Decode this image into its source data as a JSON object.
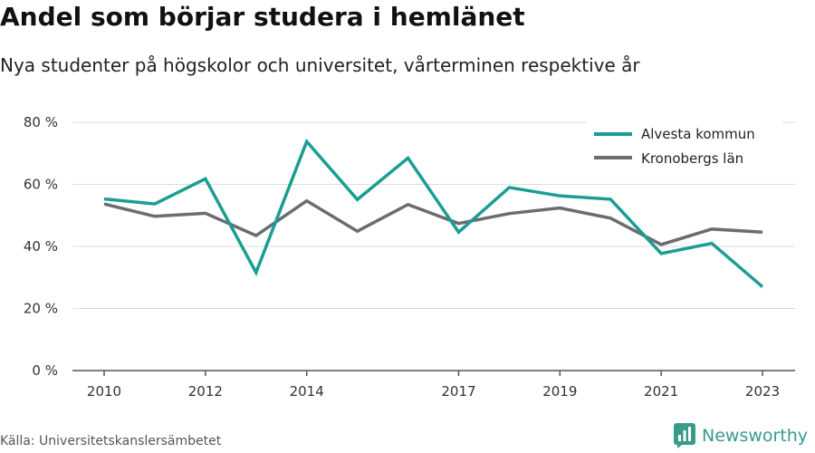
{
  "title": "Andel som börjar studera i hemlänet",
  "subtitle": "Nya studenter på högskolor och universitet, vårterminen respektive år",
  "source": "Källa: Universitetskanslersämbetet",
  "brand": {
    "name": "Newsworthy",
    "icon": "newsworthy-logo-icon"
  },
  "colors": {
    "alvesta": "#1a9e92",
    "kronoberg": "#6b6b72",
    "grid": "#dddddd",
    "axis": "#555555"
  },
  "chart_data": {
    "type": "line",
    "x": [
      2010,
      2011,
      2012,
      2013,
      2014,
      2015,
      2016,
      2017,
      2018,
      2019,
      2020,
      2021,
      2022,
      2023
    ],
    "xticks": [
      2010,
      2012,
      2014,
      2017,
      2019,
      2021,
      2023
    ],
    "yticks": [
      0,
      20,
      40,
      60,
      80
    ],
    "ytick_labels": [
      "0 %",
      "20 %",
      "40 %",
      "60 %",
      "80 %"
    ],
    "ylim": [
      0,
      80
    ],
    "grid": true,
    "legend_position": "top-right",
    "series": [
      {
        "name": "Alvesta kommun",
        "color": "#1a9e92",
        "values": [
          55.3,
          53.7,
          61.8,
          31.6,
          73.8,
          55.1,
          68.5,
          44.6,
          59.0,
          56.3,
          55.2,
          37.7,
          41.0,
          27.0
        ]
      },
      {
        "name": "Kronobergs län",
        "color": "#6b6b72",
        "values": [
          53.7,
          49.7,
          50.7,
          43.5,
          54.7,
          44.9,
          53.5,
          47.4,
          50.6,
          52.4,
          49.1,
          40.6,
          45.6,
          44.6
        ]
      }
    ]
  }
}
